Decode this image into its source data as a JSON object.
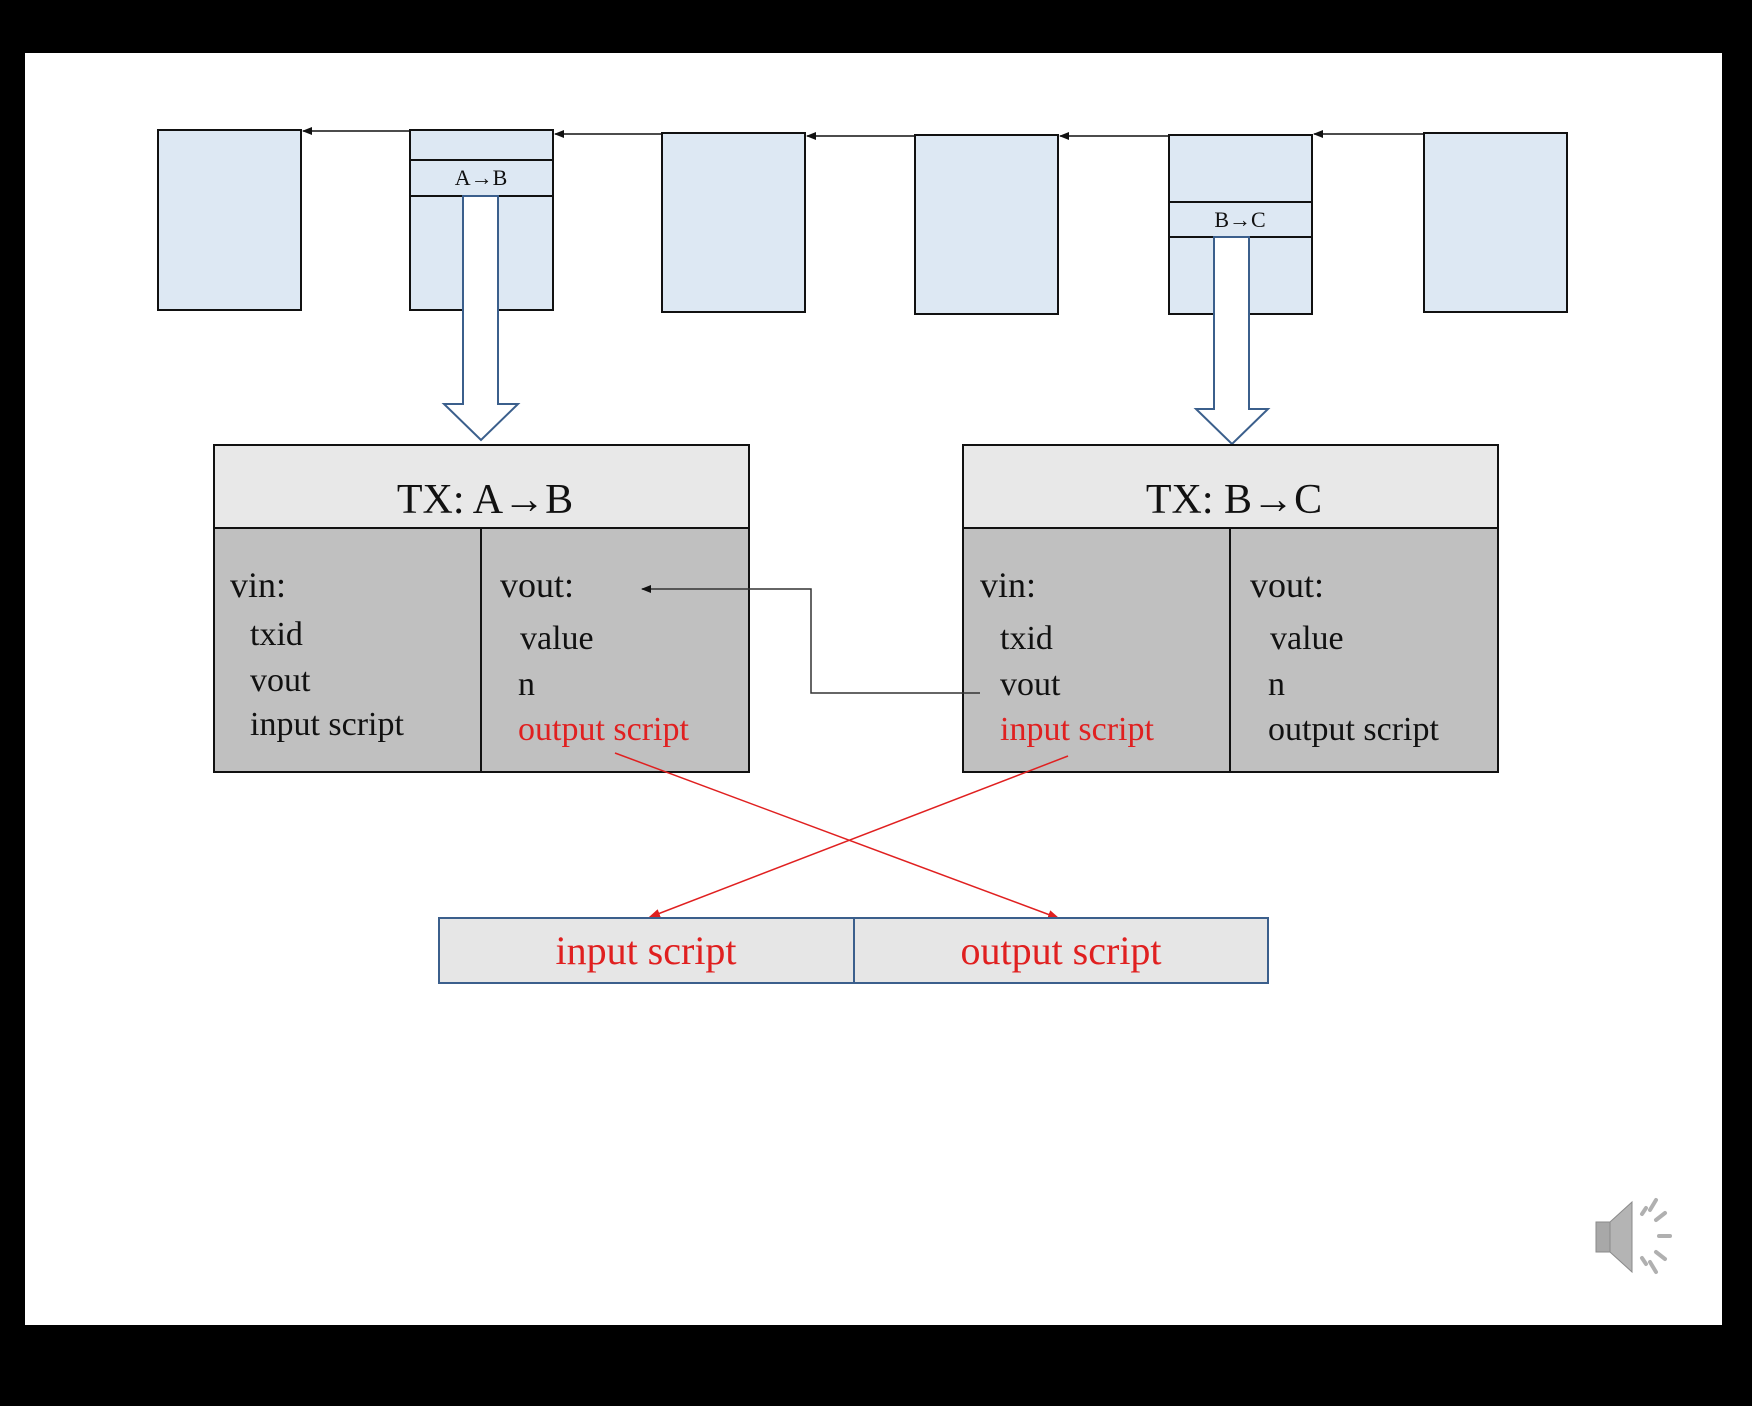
{
  "colors": {
    "block_fill": "#dde8f3",
    "header_fill": "#e8e8e8",
    "body_fill": "#c0c0c0",
    "script_box_fill": "#e6e6e6",
    "script_box_border": "#3b5f8c",
    "highlight": "#e02020",
    "text": "#111111"
  },
  "blockchain": {
    "block_ab_label": "A→B",
    "block_bc_label": "B→C"
  },
  "tx_ab": {
    "title": "TX: A→B",
    "vin": {
      "heading": "vin:",
      "fields": [
        "txid",
        "vout",
        "input script"
      ]
    },
    "vout": {
      "heading": "vout:",
      "fields": [
        "value",
        "n",
        "output script"
      ]
    }
  },
  "tx_bc": {
    "title": "TX: B→C",
    "vin": {
      "heading": "vin:",
      "fields": [
        "txid",
        "vout",
        "input script"
      ]
    },
    "vout": {
      "heading": "vout:",
      "fields": [
        "value",
        "n",
        "output script"
      ]
    }
  },
  "combined_script": {
    "left_label": "input script",
    "right_label": "output script"
  },
  "speaker_icon": "speaker-volume-icon"
}
